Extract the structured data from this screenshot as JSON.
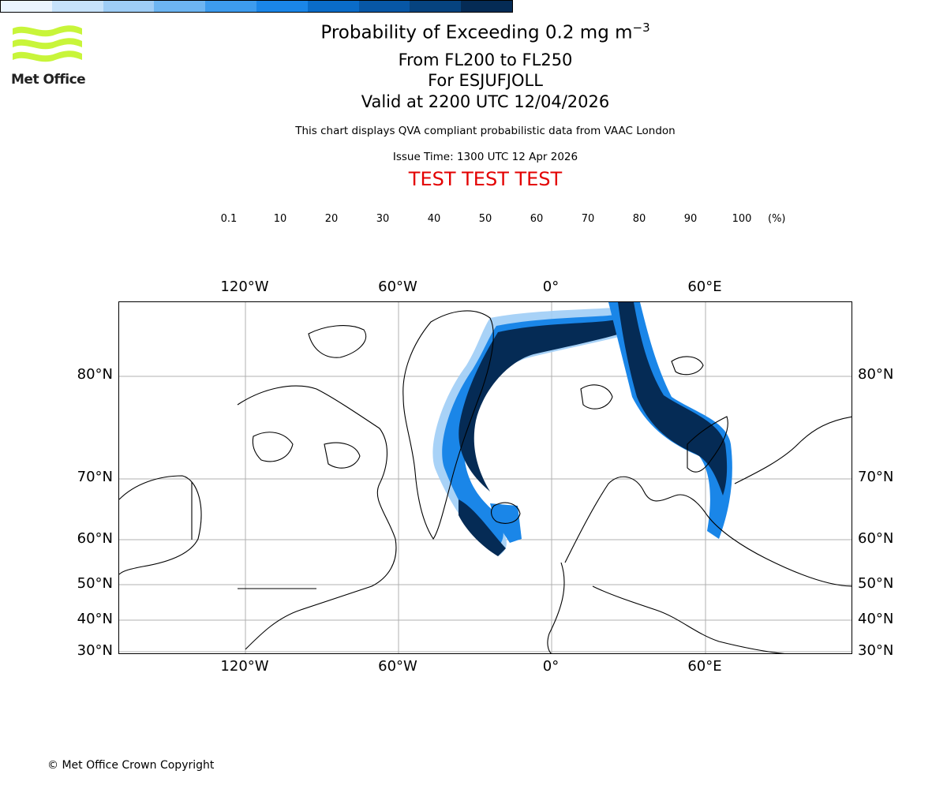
{
  "header": {
    "title_main": "Probability of Exceeding 0.2 mg m",
    "title_sup": "−3",
    "title_levels": "From FL200 to FL250",
    "title_volcano": "For ESJUFJOLL",
    "title_valid": "Valid at 2200 UTC 12/04/2026",
    "subtitle": "This chart displays QVA compliant probabilistic data from VAAC London",
    "issue_time": "Issue Time: 1300 UTC 12 Apr 2026",
    "test_banner": "TEST TEST TEST"
  },
  "logo": {
    "text": "Met Office",
    "color": "#c8f53a"
  },
  "legend": {
    "ticks": [
      "0.1",
      "10",
      "20",
      "30",
      "40",
      "50",
      "60",
      "70",
      "80",
      "90",
      "100"
    ],
    "unit": "(%)",
    "colors": [
      "#eaf4ff",
      "#c6e2fb",
      "#9ecdf6",
      "#6db5f2",
      "#3d9cee",
      "#1a86e8",
      "#0a6cc8",
      "#0757a6",
      "#06437f",
      "#052b55"
    ]
  },
  "map": {
    "lon_labels": [
      "120°W",
      "60°W",
      "0°",
      "60°E"
    ],
    "lat_labels": [
      "80°N",
      "70°N",
      "60°N",
      "50°N",
      "40°N",
      "30°N"
    ],
    "plume_color_dark": "#052b55",
    "plume_color_mid": "#1a86e8",
    "plume_color_light": "#9ecdf6"
  },
  "footer": {
    "copyright": "© Met Office Crown Copyright"
  }
}
